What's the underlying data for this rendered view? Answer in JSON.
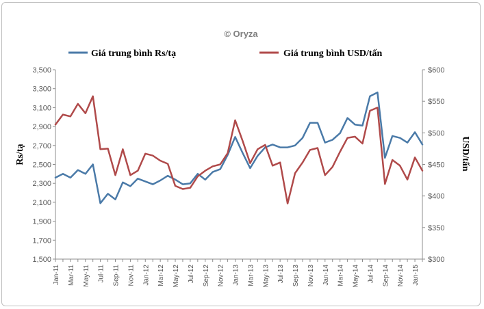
{
  "chart_data": {
    "type": "line",
    "watermark": "© Oryza",
    "left_axis": {
      "label": "Rs/tạ",
      "ylim": [
        1500,
        3500
      ],
      "ticks": [
        "1,500",
        "1,700",
        "1,900",
        "2,100",
        "2,300",
        "2,500",
        "2,700",
        "2,900",
        "3,100",
        "3,300",
        "3,500"
      ]
    },
    "right_axis": {
      "label": "USD/tấn",
      "ylim": [
        300,
        600
      ],
      "ticks": [
        "$300",
        "$350",
        "$400",
        "$450",
        "$500",
        "$550",
        "$600"
      ]
    },
    "x_tick_labels": [
      "Jan-11",
      "Mar-11",
      "May-11",
      "Jul-11",
      "Sep-11",
      "Nov-11",
      "Jan-12",
      "Mar-12",
      "May-12",
      "Jul-12",
      "Sep-12",
      "Nov-12",
      "Jan-13",
      "Mar-13",
      "May-13",
      "Jul-13",
      "Sep-13",
      "Nov-13",
      "Jan-14",
      "Mar-14",
      "May-14",
      "Jul-14",
      "Sep-14",
      "Nov-14",
      "Jan-15"
    ],
    "legend_position": "top",
    "grid": false,
    "series": [
      {
        "name": "Giá trung bình Rs/tạ",
        "axis": "left",
        "color": "#4a7aa8",
        "values": [
          2360,
          2400,
          2360,
          2440,
          2400,
          2500,
          2090,
          2190,
          2130,
          2310,
          2270,
          2350,
          2320,
          2290,
          2330,
          2380,
          2340,
          2290,
          2300,
          2400,
          2340,
          2420,
          2450,
          2600,
          2790,
          2620,
          2460,
          2590,
          2680,
          2710,
          2680,
          2680,
          2700,
          2780,
          2940,
          2940,
          2730,
          2760,
          2830,
          2990,
          2920,
          2910,
          3220,
          3260,
          2570,
          2800,
          2780,
          2730,
          2840,
          2710
        ]
      },
      {
        "name": "Giá trung bình USD/tấn",
        "axis": "right",
        "color": "#b04a4a",
        "values": [
          513,
          529,
          526,
          546,
          531,
          558,
          474,
          475,
          433,
          474,
          433,
          440,
          467,
          464,
          456,
          451,
          416,
          411,
          413,
          431,
          440,
          447,
          450,
          468,
          520,
          487,
          452,
          474,
          481,
          448,
          453,
          388,
          436,
          453,
          473,
          476,
          433,
          446,
          470,
          492,
          494,
          483,
          535,
          540,
          419,
          457,
          448,
          426,
          461,
          440
        ]
      }
    ]
  }
}
